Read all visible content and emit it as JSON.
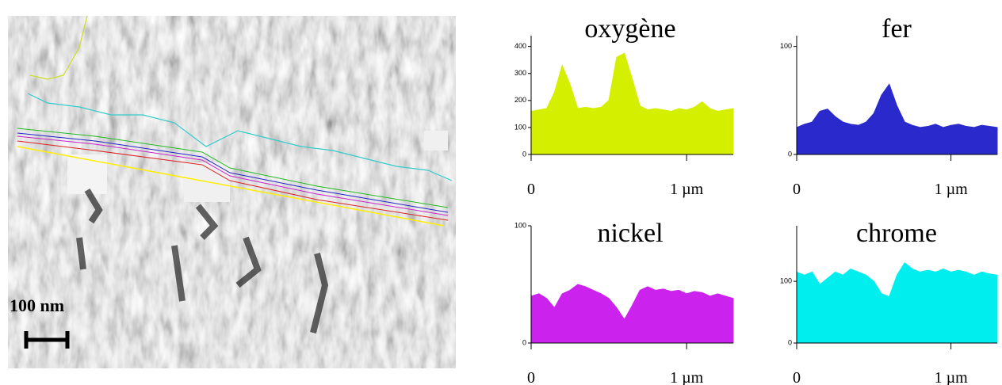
{
  "image": {
    "scale_label": "100 nm"
  },
  "chart_data": [
    {
      "type": "area",
      "title": "oxygène",
      "color": "#d4f000",
      "x": [
        0,
        0.05,
        0.1,
        0.15,
        0.2,
        0.25,
        0.3,
        0.35,
        0.4,
        0.45,
        0.5,
        0.55,
        0.6,
        0.65,
        0.7,
        0.75,
        0.8,
        0.85,
        0.9,
        0.95,
        1,
        1.05,
        1.1,
        1.15,
        1.2,
        1.25,
        1.3
      ],
      "values": [
        160,
        165,
        170,
        230,
        330,
        260,
        170,
        175,
        170,
        175,
        200,
        360,
        375,
        280,
        180,
        165,
        170,
        165,
        160,
        170,
        165,
        175,
        195,
        170,
        160,
        165,
        170
      ],
      "xlim": [
        0,
        1.3
      ],
      "xticks": [
        0,
        {
          "value": 1,
          "label": "1 µm"
        }
      ],
      "ylim": [
        0,
        440
      ],
      "yticks": [
        0,
        100,
        200,
        300,
        400
      ]
    },
    {
      "type": "area",
      "title": "fer",
      "color": "#2a2acc",
      "x": [
        0,
        0.05,
        0.1,
        0.15,
        0.2,
        0.25,
        0.3,
        0.35,
        0.4,
        0.45,
        0.5,
        0.55,
        0.6,
        0.65,
        0.7,
        0.75,
        0.8,
        0.85,
        0.9,
        0.95,
        1,
        1.05,
        1.1,
        1.15,
        1.2,
        1.25,
        1.3
      ],
      "values": [
        25,
        28,
        30,
        40,
        42,
        35,
        30,
        28,
        27,
        30,
        38,
        55,
        65,
        45,
        30,
        27,
        25,
        26,
        28,
        25,
        27,
        28,
        26,
        25,
        27,
        26,
        25
      ],
      "xlim": [
        0,
        1.3
      ],
      "xticks": [
        0,
        {
          "value": 1,
          "label": "1 µm"
        }
      ],
      "ylim": [
        0,
        110
      ],
      "yticks": [
        0,
        100
      ]
    },
    {
      "type": "area",
      "title": "nickel",
      "color": "#cc22ee",
      "x": [
        0,
        0.05,
        0.1,
        0.15,
        0.2,
        0.25,
        0.3,
        0.35,
        0.4,
        0.45,
        0.5,
        0.55,
        0.6,
        0.65,
        0.7,
        0.75,
        0.8,
        0.85,
        0.9,
        0.95,
        1,
        1.05,
        1.1,
        1.15,
        1.2,
        1.25,
        1.3
      ],
      "values": [
        40,
        42,
        38,
        30,
        42,
        45,
        50,
        48,
        45,
        42,
        38,
        30,
        20,
        32,
        45,
        48,
        45,
        46,
        44,
        45,
        42,
        44,
        43,
        40,
        42,
        40,
        38
      ],
      "xlim": [
        0,
        1.3
      ],
      "xticks": [
        0,
        {
          "value": 1,
          "label": "1 µm"
        }
      ],
      "ylim": [
        0,
        100
      ],
      "yticks": [
        0,
        100
      ]
    },
    {
      "type": "area",
      "title": "chrome",
      "color": "#00eeee",
      "x": [
        0,
        0.05,
        0.1,
        0.15,
        0.2,
        0.25,
        0.3,
        0.35,
        0.4,
        0.45,
        0.5,
        0.55,
        0.6,
        0.65,
        0.7,
        0.75,
        0.8,
        0.85,
        0.9,
        0.95,
        1,
        1.05,
        1.1,
        1.15,
        1.2,
        1.25,
        1.3
      ],
      "values": [
        115,
        110,
        115,
        95,
        105,
        115,
        110,
        120,
        115,
        110,
        100,
        80,
        75,
        110,
        130,
        120,
        115,
        118,
        115,
        120,
        115,
        118,
        115,
        110,
        115,
        112,
        110
      ],
      "xlim": [
        0,
        1.3
      ],
      "xticks": [
        0,
        {
          "value": 1,
          "label": "1 µm"
        }
      ],
      "ylim": [
        0,
        190
      ],
      "yticks": [
        0,
        100
      ]
    }
  ]
}
